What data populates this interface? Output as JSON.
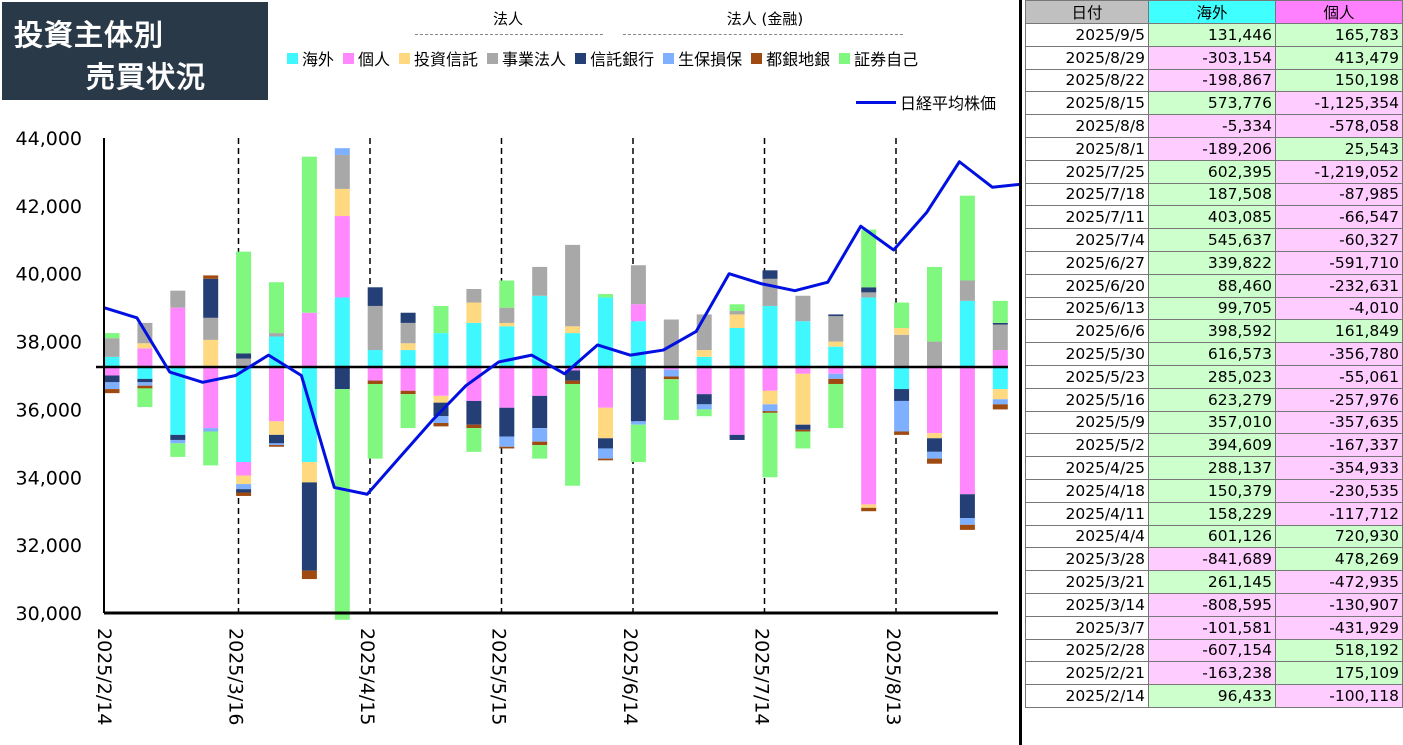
{
  "title": {
    "line1": "投資主体別",
    "line2": "売買状況"
  },
  "groups": [
    {
      "label": "法人"
    },
    {
      "label": "法人 (金融)"
    }
  ],
  "legend": [
    {
      "name": "海外",
      "color": "#3ff7ff"
    },
    {
      "name": "個人",
      "color": "#ff88ff"
    },
    {
      "name": "投資信託",
      "color": "#ffd980"
    },
    {
      "name": "事業法人",
      "color": "#a8a8a8"
    },
    {
      "name": "信託銀行",
      "color": "#243f75"
    },
    {
      "name": "生保損保",
      "color": "#7fb0ff"
    },
    {
      "name": "都銀地銀",
      "color": "#9e4a10"
    },
    {
      "name": "証券自己",
      "color": "#80f880"
    }
  ],
  "nikkei_legend": "日経平均株価",
  "chart_data": {
    "type": "bar",
    "title": "",
    "ylim": [
      30000,
      44000
    ],
    "y_ticks": [
      "30,000",
      "32,000",
      "34,000",
      "36,000",
      "38,000",
      "40,000",
      "42,000",
      "44,000"
    ],
    "x_labels": [
      "2025/2/14",
      "2025/3/16",
      "2025/4/15",
      "2025/5/15",
      "2025/6/14",
      "2025/7/14",
      "2025/8/13"
    ],
    "categories": [
      "2025/2/14",
      "2025/2/21",
      "2025/2/28",
      "2025/3/7",
      "2025/3/14",
      "2025/3/21",
      "2025/3/28",
      "2025/4/4",
      "2025/4/11",
      "2025/4/18",
      "2025/4/25",
      "2025/5/2",
      "2025/5/9",
      "2025/5/16",
      "2025/5/23",
      "2025/5/30",
      "2025/6/6",
      "2025/6/13",
      "2025/6/20",
      "2025/6/27",
      "2025/7/4",
      "2025/7/11",
      "2025/7/18",
      "2025/7/25",
      "2025/8/1",
      "2025/8/8",
      "2025/8/15",
      "2025/8/22",
      "2025/8/29",
      "2025/9/5"
    ],
    "baseline": 37250,
    "nikkei": [
      39000,
      38700,
      37100,
      36800,
      37000,
      37600,
      37000,
      33700,
      33500,
      34600,
      35700,
      36700,
      37400,
      37600,
      37050,
      37900,
      37600,
      37750,
      38300,
      40000,
      39700,
      39500,
      39750,
      41400,
      40700,
      41800,
      43300,
      42550,
      42650,
      42950
    ],
    "series_order": [
      "海外",
      "個人",
      "投資信託",
      "事業法人",
      "信託銀行",
      "生保損保",
      "都銀地銀",
      "証券自己"
    ],
    "stacks": [
      {
        "pos": [
          [
            "海外",
            300
          ],
          [
            "事業法人",
            550
          ],
          [
            "証券自己",
            150
          ]
        ],
        "neg": [
          [
            "個人",
            250
          ],
          [
            "信託銀行",
            200
          ],
          [
            "生保損保",
            200
          ],
          [
            "都銀地銀",
            120
          ]
        ]
      },
      {
        "pos": [
          [
            "個人",
            550
          ],
          [
            "投資信託",
            150
          ],
          [
            "事業法人",
            600
          ]
        ],
        "neg": [
          [
            "海外",
            350
          ],
          [
            "信託銀行",
            100
          ],
          [
            "生保損保",
            100
          ],
          [
            "都銀地銀",
            80
          ],
          [
            "証券自己",
            550
          ]
        ]
      },
      {
        "pos": [
          [
            "個人",
            1750
          ],
          [
            "事業法人",
            500
          ]
        ],
        "neg": [
          [
            "海外",
            2000
          ],
          [
            "信託銀行",
            150
          ],
          [
            "生保損保",
            100
          ],
          [
            "証券自己",
            400
          ]
        ]
      },
      {
        "pos": [
          [
            "投資信託",
            800
          ],
          [
            "事業法人",
            650
          ],
          [
            "信託銀行",
            1150
          ],
          [
            "都銀地銀",
            100
          ]
        ],
        "neg": [
          [
            "個人",
            1800
          ],
          [
            "生保損保",
            100
          ],
          [
            "証券自己",
            1000
          ]
        ]
      },
      {
        "pos": [
          [
            "事業法人",
            250
          ],
          [
            "信託銀行",
            150
          ],
          [
            "証券自己",
            3000
          ]
        ],
        "neg": [
          [
            "海外",
            2800
          ],
          [
            "個人",
            400
          ],
          [
            "投資信託",
            250
          ],
          [
            "生保損保",
            150
          ],
          [
            "信託銀行",
            100
          ],
          [
            "都銀地銀",
            100
          ]
        ]
      },
      {
        "pos": [
          [
            "海外",
            900
          ],
          [
            "事業法人",
            100
          ],
          [
            "証券自己",
            1500
          ]
        ],
        "neg": [
          [
            "個人",
            1600
          ],
          [
            "投資信託",
            400
          ],
          [
            "信託銀行",
            250
          ],
          [
            "生保損保",
            50
          ],
          [
            "都銀地銀",
            50
          ]
        ]
      },
      {
        "pos": [
          [
            "個人",
            1600
          ],
          [
            "証券自己",
            4600
          ]
        ],
        "neg": [
          [
            "海外",
            2800
          ],
          [
            "投資信託",
            600
          ],
          [
            "信託銀行",
            2600
          ],
          [
            "都銀地銀",
            250
          ]
        ]
      },
      {
        "pos": [
          [
            "海外",
            2050
          ],
          [
            "個人",
            2400
          ],
          [
            "投資信託",
            800
          ],
          [
            "事業法人",
            1000
          ],
          [
            "生保損保",
            200
          ]
        ],
        "neg": [
          [
            "信託銀行",
            650
          ],
          [
            "証券自己",
            6800
          ]
        ]
      },
      {
        "pos": [
          [
            "海外",
            500
          ],
          [
            "事業法人",
            1300
          ],
          [
            "信託銀行",
            550
          ]
        ],
        "neg": [
          [
            "個人",
            400
          ],
          [
            "都銀地銀",
            100
          ],
          [
            "証券自己",
            2200
          ]
        ]
      },
      {
        "pos": [
          [
            "海外",
            500
          ],
          [
            "投資信託",
            200
          ],
          [
            "事業法人",
            600
          ],
          [
            "信託銀行",
            300
          ]
        ],
        "neg": [
          [
            "個人",
            700
          ],
          [
            "都銀地銀",
            100
          ],
          [
            "証券自己",
            1000
          ]
        ]
      },
      {
        "pos": [
          [
            "海外",
            1000
          ],
          [
            "証券自己",
            800
          ]
        ],
        "neg": [
          [
            "個人",
            850
          ],
          [
            "投資信託",
            200
          ],
          [
            "信託銀行",
            400
          ],
          [
            "生保損保",
            200
          ],
          [
            "都銀地銀",
            100
          ]
        ]
      },
      {
        "pos": [
          [
            "海外",
            1300
          ],
          [
            "投資信託",
            600
          ],
          [
            "事業法人",
            400
          ]
        ],
        "neg": [
          [
            "個人",
            1000
          ],
          [
            "信託銀行",
            700
          ],
          [
            "都銀地銀",
            100
          ],
          [
            "証券自己",
            700
          ]
        ]
      },
      {
        "pos": [
          [
            "海外",
            1200
          ],
          [
            "投資信託",
            100
          ],
          [
            "事業法人",
            450
          ],
          [
            "証券自己",
            800
          ]
        ],
        "neg": [
          [
            "個人",
            1200
          ],
          [
            "信託銀行",
            850
          ],
          [
            "生保損保",
            300
          ],
          [
            "都銀地銀",
            50
          ]
        ]
      },
      {
        "pos": [
          [
            "海外",
            2100
          ],
          [
            "事業法人",
            850
          ]
        ],
        "neg": [
          [
            "個人",
            850
          ],
          [
            "信託銀行",
            950
          ],
          [
            "生保損保",
            400
          ],
          [
            "都銀地銀",
            100
          ],
          [
            "証券自己",
            400
          ]
        ]
      },
      {
        "pos": [
          [
            "海外",
            1000
          ],
          [
            "投資信託",
            200
          ],
          [
            "事業法人",
            2400
          ]
        ],
        "neg": [
          [
            "個人",
            100
          ],
          [
            "信託銀行",
            300
          ],
          [
            "都銀地銀",
            100
          ],
          [
            "証券自己",
            3000
          ]
        ]
      },
      {
        "pos": [
          [
            "海外",
            2050
          ],
          [
            "証券自己",
            100
          ]
        ],
        "neg": [
          [
            "個人",
            1200
          ],
          [
            "投資信託",
            900
          ],
          [
            "信託銀行",
            300
          ],
          [
            "生保損保",
            300
          ],
          [
            "都銀地銀",
            50
          ]
        ]
      },
      {
        "pos": [
          [
            "海外",
            1350
          ],
          [
            "個人",
            500
          ],
          [
            "事業法人",
            1150
          ]
        ],
        "neg": [
          [
            "信託銀行",
            1600
          ],
          [
            "生保損保",
            100
          ],
          [
            "証券自己",
            1100
          ]
        ]
      },
      {
        "pos": [
          [
            "事業法人",
            1400
          ]
        ],
        "neg": [
          [
            "個人",
            80
          ],
          [
            "生保損保",
            200
          ],
          [
            "都銀地銀",
            80
          ],
          [
            "証券自己",
            1200
          ]
        ]
      },
      {
        "pos": [
          [
            "海外",
            300
          ],
          [
            "投資信託",
            200
          ],
          [
            "事業法人",
            1050
          ]
        ],
        "neg": [
          [
            "個人",
            800
          ],
          [
            "信託銀行",
            300
          ],
          [
            "生保損保",
            150
          ],
          [
            "証券自己",
            200
          ]
        ]
      },
      {
        "pos": [
          [
            "海外",
            1150
          ],
          [
            "投資信託",
            400
          ],
          [
            "事業法人",
            100
          ],
          [
            "証券自己",
            200
          ]
        ],
        "neg": [
          [
            "個人",
            2000
          ],
          [
            "信託銀行",
            150
          ]
        ]
      },
      {
        "pos": [
          [
            "海外",
            1800
          ],
          [
            "事業法人",
            800
          ],
          [
            "信託銀行",
            250
          ]
        ],
        "neg": [
          [
            "個人",
            700
          ],
          [
            "投資信託",
            400
          ],
          [
            "生保損保",
            200
          ],
          [
            "都銀地銀",
            50
          ],
          [
            "証券自己",
            1900
          ]
        ]
      },
      {
        "pos": [
          [
            "海外",
            1350
          ],
          [
            "事業法人",
            750
          ]
        ],
        "neg": [
          [
            "個人",
            200
          ],
          [
            "投資信託",
            1500
          ],
          [
            "信託銀行",
            150
          ],
          [
            "都銀地銀",
            50
          ],
          [
            "証券自己",
            500
          ]
        ]
      },
      {
        "pos": [
          [
            "海外",
            600
          ],
          [
            "投資信託",
            150
          ],
          [
            "事業法人",
            750
          ],
          [
            "信託銀行",
            50
          ]
        ],
        "neg": [
          [
            "個人",
            200
          ],
          [
            "生保損保",
            150
          ],
          [
            "都銀地銀",
            150
          ],
          [
            "証券自己",
            1300
          ]
        ]
      },
      {
        "pos": [
          [
            "海外",
            2050
          ],
          [
            "事業法人",
            150
          ],
          [
            "信託銀行",
            150
          ],
          [
            "証券自己",
            1700
          ]
        ],
        "neg": [
          [
            "個人",
            4050
          ],
          [
            "投資信託",
            100
          ],
          [
            "都銀地銀",
            100
          ]
        ]
      },
      {
        "pos": [
          [
            "事業法人",
            950
          ],
          [
            "投資信託",
            200
          ],
          [
            "証券自己",
            750
          ]
        ],
        "neg": [
          [
            "海外",
            650
          ],
          [
            "信託銀行",
            350
          ],
          [
            "生保損保",
            900
          ],
          [
            "都銀地銀",
            100
          ]
        ]
      },
      {
        "pos": [
          [
            "事業法人",
            750
          ],
          [
            "証券自己",
            2200
          ]
        ],
        "neg": [
          [
            "個人",
            1950
          ],
          [
            "投資信託",
            150
          ],
          [
            "信託銀行",
            400
          ],
          [
            "生保損保",
            200
          ],
          [
            "都銀地銀",
            150
          ]
        ]
      },
      {
        "pos": [
          [
            "海外",
            1950
          ],
          [
            "事業法人",
            600
          ],
          [
            "証券自己",
            2500
          ]
        ],
        "neg": [
          [
            "個人",
            3750
          ],
          [
            "信託銀行",
            700
          ],
          [
            "生保損保",
            200
          ],
          [
            "都銀地銀",
            150
          ]
        ]
      },
      {
        "pos": [
          [
            "個人",
            500
          ],
          [
            "事業法人",
            750
          ],
          [
            "信託銀行",
            50
          ],
          [
            "証券自己",
            650
          ]
        ],
        "neg": [
          [
            "海外",
            650
          ],
          [
            "投資信託",
            300
          ],
          [
            "生保損保",
            150
          ],
          [
            "都銀地銀",
            150
          ]
        ]
      },
      {
        "pos": [
          [
            "個人",
            1350
          ],
          [
            "事業法人",
            1400
          ],
          [
            "証券自己",
            900
          ]
        ],
        "neg": [
          [
            "海外",
            850
          ],
          [
            "投資信託",
            700
          ],
          [
            "信託銀行",
            1450
          ],
          [
            "生保損保",
            200
          ],
          [
            "都銀地銀",
            50
          ]
        ]
      },
      {
        "pos": [
          [
            "海外",
            400
          ],
          [
            "個人",
            550
          ],
          [
            "事業法人",
            1050
          ]
        ],
        "neg": [
          [
            "投資信託",
            350
          ],
          [
            "信託銀行",
            1100
          ],
          [
            "生保損保",
            100
          ],
          [
            "都銀地銀",
            100
          ],
          [
            "証券自己",
            100
          ]
        ]
      }
    ]
  },
  "table": {
    "headers": [
      "日付",
      "海外",
      "個人"
    ],
    "header_colors": [
      "#c0c0c0",
      "#40ffff",
      "#ff80ff"
    ],
    "rows": [
      [
        "2025/9/5",
        "131,446",
        "165,783"
      ],
      [
        "2025/8/29",
        "-303,154",
        "413,479"
      ],
      [
        "2025/8/22",
        "-198,867",
        "150,198"
      ],
      [
        "2025/8/15",
        "573,776",
        "-1,125,354"
      ],
      [
        "2025/8/8",
        "-5,334",
        "-578,058"
      ],
      [
        "2025/8/1",
        "-189,206",
        "25,543"
      ],
      [
        "2025/7/25",
        "602,395",
        "-1,219,052"
      ],
      [
        "2025/7/18",
        "187,508",
        "-87,985"
      ],
      [
        "2025/7/11",
        "403,085",
        "-66,547"
      ],
      [
        "2025/7/4",
        "545,637",
        "-60,327"
      ],
      [
        "2025/6/27",
        "339,822",
        "-591,710"
      ],
      [
        "2025/6/20",
        "88,460",
        "-232,631"
      ],
      [
        "2025/6/13",
        "99,705",
        "-4,010"
      ],
      [
        "2025/6/6",
        "398,592",
        "161,849"
      ],
      [
        "2025/5/30",
        "616,573",
        "-356,780"
      ],
      [
        "2025/5/23",
        "285,023",
        "-55,061"
      ],
      [
        "2025/5/16",
        "623,279",
        "-257,976"
      ],
      [
        "2025/5/9",
        "357,010",
        "-357,635"
      ],
      [
        "2025/5/2",
        "394,609",
        "-167,337"
      ],
      [
        "2025/4/25",
        "288,137",
        "-354,933"
      ],
      [
        "2025/4/18",
        "150,379",
        "-230,535"
      ],
      [
        "2025/4/11",
        "158,229",
        "-117,712"
      ],
      [
        "2025/4/4",
        "601,126",
        "720,930"
      ],
      [
        "2025/3/28",
        "-841,689",
        "478,269"
      ],
      [
        "2025/3/21",
        "261,145",
        "-472,935"
      ],
      [
        "2025/3/14",
        "-808,595",
        "-130,907"
      ],
      [
        "2025/3/7",
        "-101,581",
        "-431,929"
      ],
      [
        "2025/2/28",
        "-607,154",
        "518,192"
      ],
      [
        "2025/2/21",
        "-163,238",
        "175,109"
      ],
      [
        "2025/2/14",
        "96,433",
        "-100,118"
      ]
    ]
  }
}
